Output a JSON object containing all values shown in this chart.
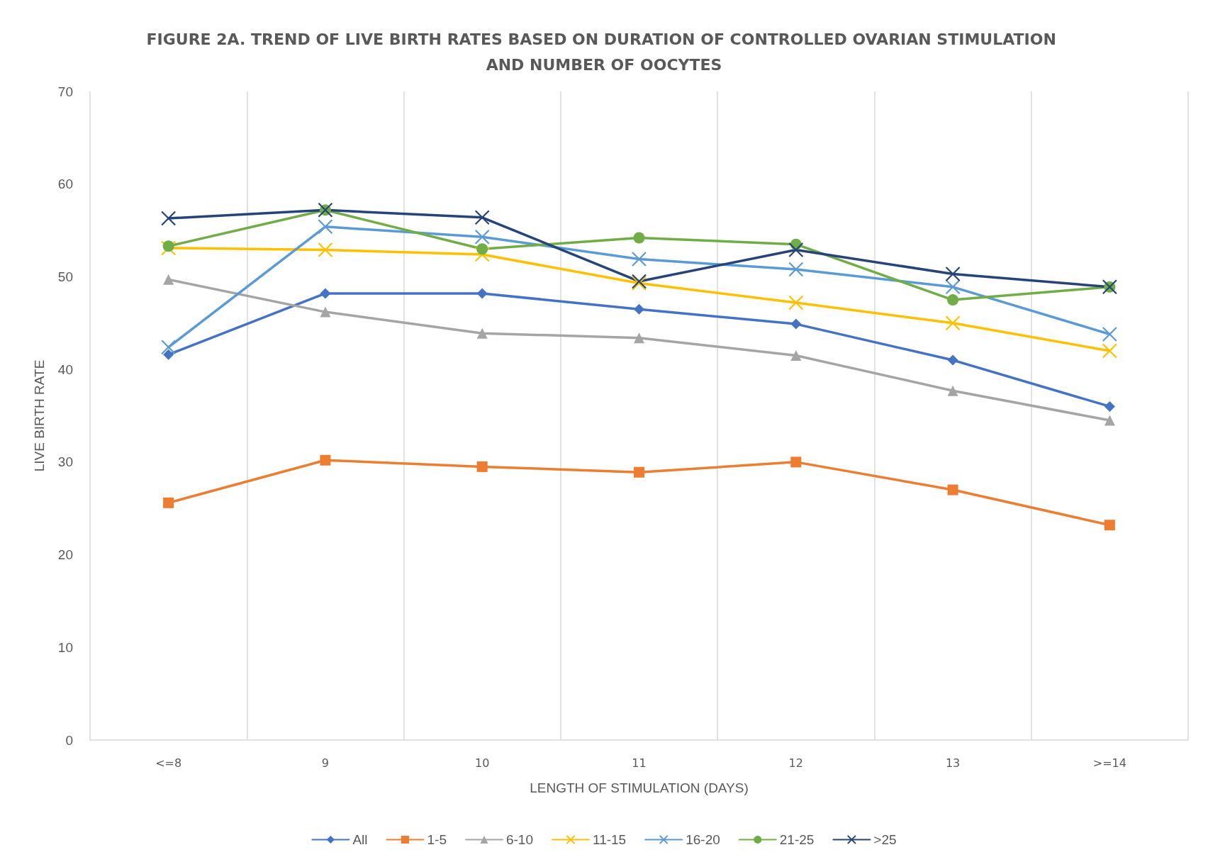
{
  "chart_data": {
    "type": "line",
    "title": "FIGURE 2A. TREND OF LIVE BIRTH RATES BASED ON DURATION OF CONTROLLED OVARIAN STIMULATION AND NUMBER OF OOCYTES",
    "xlabel": "LENGTH OF STIMULATION (DAYS)",
    "ylabel": "LIVE BIRTH RATE",
    "categories": [
      "<=8",
      "9",
      "10",
      "11",
      "12",
      "13",
      ">=14"
    ],
    "ylim": [
      0,
      70
    ],
    "yticks": [
      0,
      10,
      20,
      30,
      40,
      50,
      60,
      70
    ],
    "grid": "x",
    "legend": "bottom",
    "line_style": "solid",
    "series": [
      {
        "name": "All",
        "color": "#4472c4",
        "marker": "diamond",
        "values": [
          41.6,
          48.2,
          48.2,
          46.5,
          44.9,
          41.0,
          36.0
        ]
      },
      {
        "name": "1-5",
        "color": "#ed7d31",
        "marker": "square",
        "values": [
          25.6,
          30.2,
          29.5,
          28.9,
          30.0,
          27.0,
          23.2
        ]
      },
      {
        "name": "6-10",
        "color": "#a5a5a5",
        "marker": "triangle",
        "values": [
          49.7,
          46.2,
          43.9,
          43.4,
          41.5,
          37.7,
          34.5
        ]
      },
      {
        "name": "11-15",
        "color": "#ffc000",
        "marker": "cross",
        "values": [
          53.1,
          52.9,
          52.4,
          49.3,
          47.2,
          45.0,
          42.0
        ]
      },
      {
        "name": "16-20",
        "color": "#5b9bd5",
        "marker": "cross",
        "values": [
          42.4,
          55.4,
          54.3,
          51.9,
          50.8,
          48.9,
          43.8
        ]
      },
      {
        "name": "21-25",
        "color": "#70ad47",
        "marker": "circle",
        "values": [
          53.3,
          57.2,
          53.0,
          54.2,
          53.5,
          47.5,
          48.9
        ]
      },
      {
        "name": ">25",
        "color": "#264478",
        "marker": "cross",
        "values": [
          56.3,
          57.2,
          56.4,
          49.5,
          52.9,
          50.3,
          48.9
        ]
      }
    ]
  }
}
